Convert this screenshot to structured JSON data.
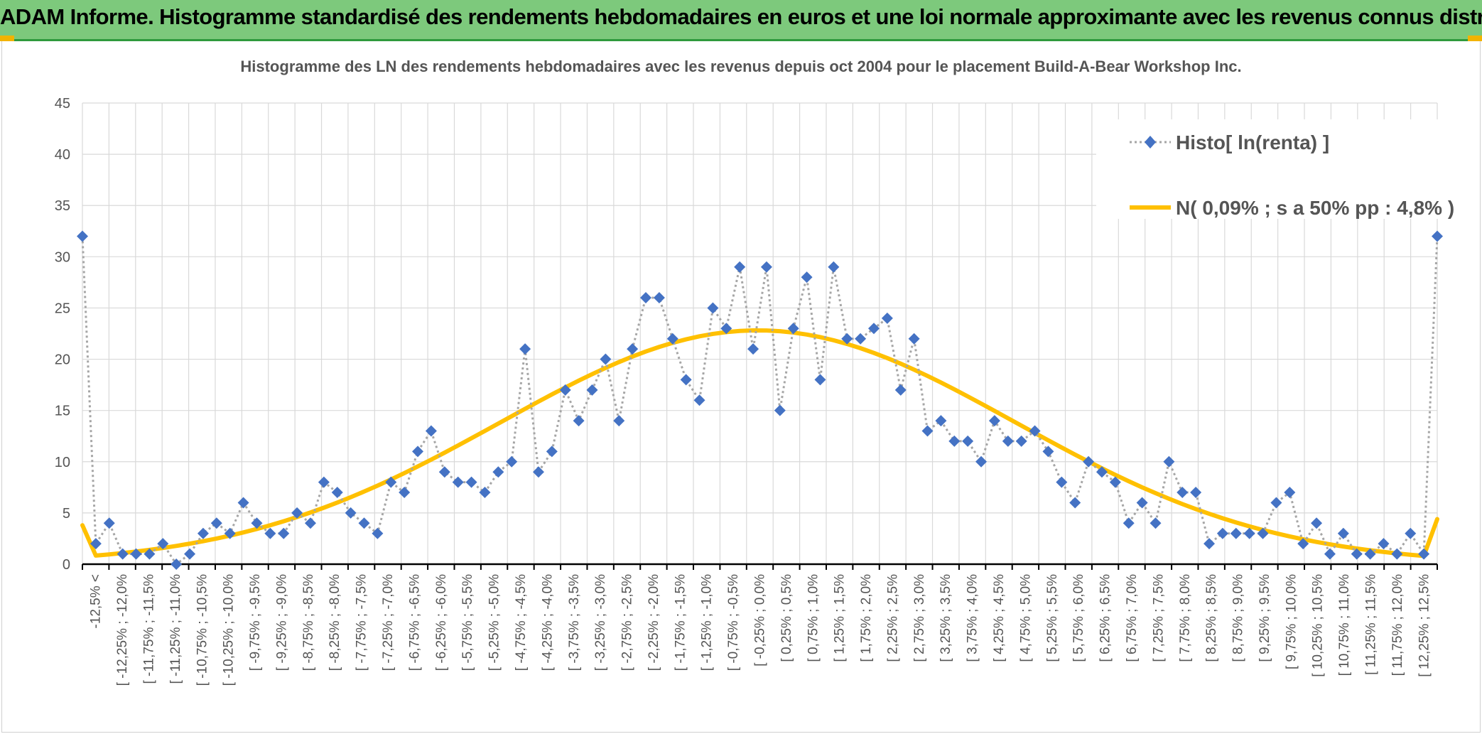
{
  "banner": {
    "title": "ADAM Informe. Histogramme standardisé des rendements hebdomadaires en euros et une loi normale approximante avec les revenus connus distribués"
  },
  "colors": {
    "banner_bg": "#7dc97c",
    "accent": "#f2b300",
    "histogram_marker": "#4472c4",
    "histogram_line": "#a6a6a6",
    "normal_curve": "#ffc000",
    "grid": "#d9d9d9"
  },
  "chart_data": {
    "type": "line",
    "title": "Histogramme des LN des rendements hebdomadaires avec les revenus depuis oct 2004 pour le placement Build-A-Bear Workshop Inc.",
    "xlabel": "",
    "ylabel": "",
    "ylim": [
      0,
      45
    ],
    "yticks": [
      0,
      5,
      10,
      15,
      20,
      25,
      30,
      35,
      40,
      45
    ],
    "grid": true,
    "legend_position": "top-right",
    "tick_labels": [
      "-12,5% <",
      "[ -12,25% ; -12,0%",
      "[ -11,75% ; -11,5%",
      "[ -11,25% ; -11,0%",
      "[ -10,75% ; -10,5%",
      "[ -10,25% ; -10,0%",
      "[ -9,75% ; -9,5%",
      "[ -9,25% ; -9,0%",
      "[ -8,75% ; -8,5%",
      "[ -8,25% ; -8,0%",
      "[ -7,75% ; -7,5%",
      "[ -7,25% ; -7,0%",
      "[ -6,75% ; -6,5%",
      "[ -6,25% ; -6,0%",
      "[ -5,75% ; -5,5%",
      "[ -5,25% ; -5,0%",
      "[ -4,75% ; -4,5%",
      "[ -4,25% ; -4,0%",
      "[ -3,75% ; -3,5%",
      "[ -3,25% ; -3,0%",
      "[ -2,75% ; -2,5%",
      "[ -2,25% ; -2,0%",
      "[ -1,75% ; -1,5%",
      "[ -1,25% ; -1,0%",
      "[ -0,75% ; -0,5%",
      "[ -0,25% ; 0,0%",
      "[ 0,25% ; 0,5%",
      "[ 0,75% ; 1,0%",
      "[ 1,25% ; 1,5%",
      "[ 1,75% ; 2,0%",
      "[ 2,25% ; 2,5%",
      "[ 2,75% ; 3,0%",
      "[ 3,25% ; 3,5%",
      "[ 3,75% ; 4,0%",
      "[ 4,25% ; 4,5%",
      "[ 4,75% ; 5,0%",
      "[ 5,25% ; 5,5%",
      "[ 5,75% ; 6,0%",
      "[ 6,25% ; 6,5%",
      "[ 6,75% ; 7,0%",
      "[ 7,25% ; 7,5%",
      "[ 7,75% ; 8,0%",
      "[ 8,25% ; 8,5%",
      "[ 8,75% ; 9,0%",
      "[ 9,25% ; 9,5%",
      "[ 9,75% ; 10,0%",
      "[ 10,25% ; 10,5%",
      "[ 10,75% ; 11,0%",
      "[ 11,25% ; 11,5%",
      "[ 11,75% ; 12,0%",
      "[ 12,25% ; 12,5%"
    ],
    "series": [
      {
        "name": "Histo[ ln(renta) ]",
        "style": "dotted line with diamond markers",
        "values": [
          32,
          2,
          4,
          1,
          1,
          1,
          2,
          0,
          1,
          3,
          4,
          3,
          6,
          4,
          3,
          3,
          5,
          4,
          8,
          7,
          5,
          4,
          3,
          8,
          7,
          11,
          13,
          9,
          8,
          8,
          7,
          9,
          10,
          21,
          9,
          11,
          17,
          14,
          17,
          20,
          14,
          21,
          26,
          26,
          22,
          18,
          16,
          25,
          23,
          29,
          21,
          29,
          15,
          23,
          28,
          18,
          29,
          22,
          22,
          23,
          24,
          17,
          22,
          13,
          14,
          12,
          12,
          10,
          14,
          12,
          12,
          13,
          11,
          8,
          6,
          10,
          9,
          8,
          4,
          6,
          4,
          10,
          7,
          7,
          2,
          3,
          3,
          3,
          3,
          6,
          7,
          2,
          4,
          1,
          3,
          1,
          1,
          2,
          1,
          3,
          1,
          32
        ]
      },
      {
        "name": "N( 0,09% ; s a 50% pp : 4,8% )",
        "style": "solid line",
        "mean_percent": 0.09,
        "sd_percent": 4.8,
        "values_at_bins": {
          "first_bin": 3.8,
          "last_bin": 4.4
        }
      }
    ]
  }
}
